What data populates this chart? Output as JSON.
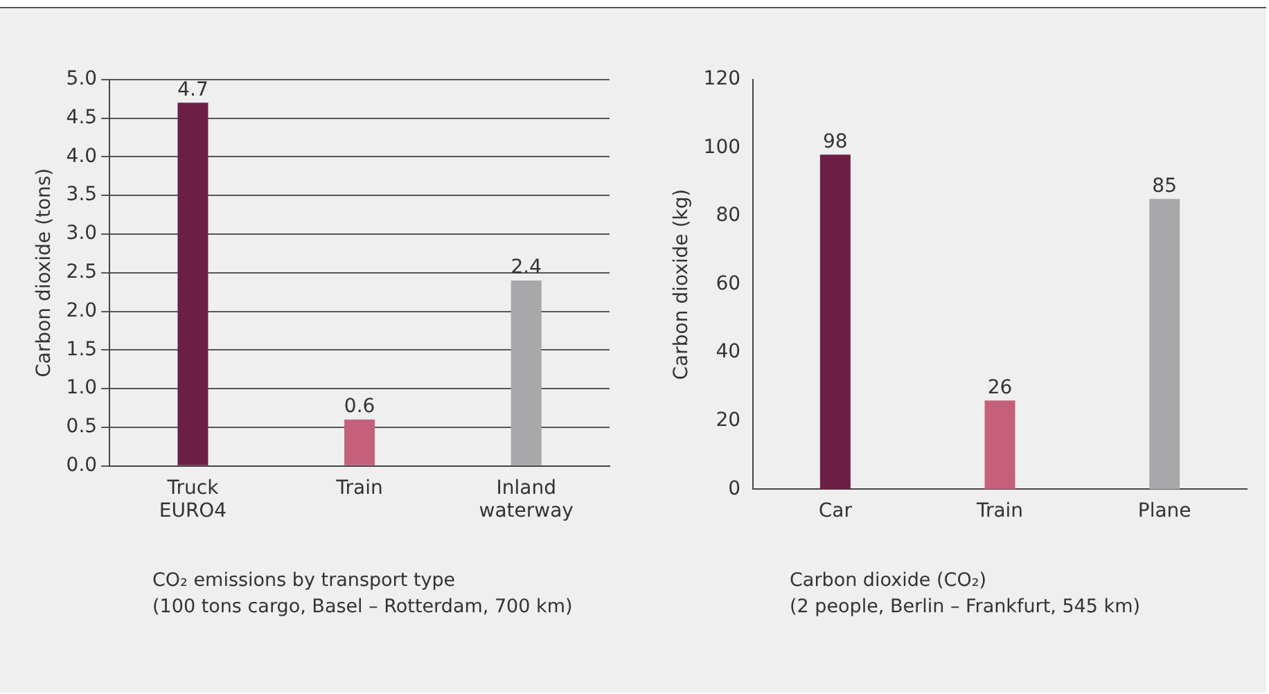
{
  "chart_data": [
    {
      "type": "bar",
      "ylabel": "Carbon dioxide (tons)",
      "categories": [
        "Truck EURO4",
        "Train",
        "Inland waterway"
      ],
      "values": [
        4.7,
        0.6,
        2.4
      ],
      "colors": [
        "#6b1f45",
        "#c4607c",
        "#a8a8ab"
      ],
      "ylim": [
        0,
        5
      ],
      "yticks": [
        {
          "value": 0,
          "label": "0.0"
        },
        0.5,
        {
          "value": 1,
          "label": "1.0"
        },
        1.5,
        {
          "value": 2,
          "label": "2.0"
        },
        2.5,
        {
          "value": 3,
          "label": "3.0"
        },
        3.5,
        {
          "value": 4,
          "label": "4.0"
        },
        4.5,
        {
          "value": 5,
          "label": "5.0"
        }
      ],
      "grid": "y",
      "data_labels": true,
      "annotations": [
        "CO₂ emissions by transport type",
        "(100 tons cargo, Basel – Rotterdam, 700 km)"
      ]
    },
    {
      "type": "bar",
      "ylabel": "Carbon dioxide (kg)",
      "categories": [
        "Car",
        "Train",
        "Plane"
      ],
      "values": [
        98,
        26,
        85
      ],
      "colors": [
        "#6b1f45",
        "#c4607c",
        "#a8a8ab"
      ],
      "ylim": [
        0,
        120
      ],
      "yticks": [
        0,
        20,
        40,
        60,
        80,
        100,
        120
      ],
      "data_labels": true,
      "annotations": [
        "Carbon dioxide (CO₂)",
        "(2 people, Berlin – Frankfurt, 545 km)"
      ]
    }
  ]
}
